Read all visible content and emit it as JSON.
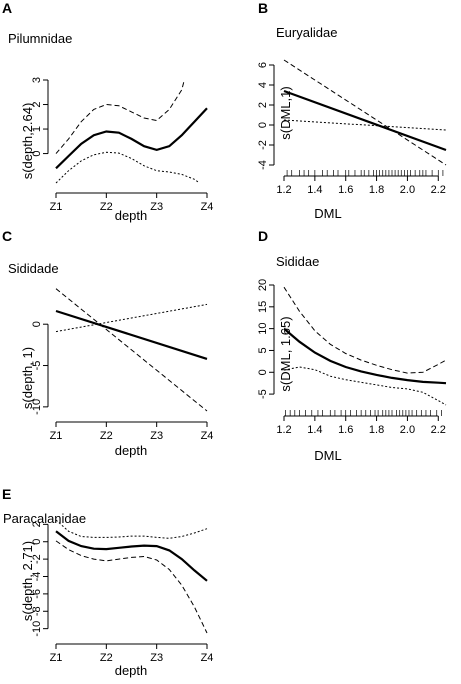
{
  "chart_data": [
    {
      "letter": "A",
      "title": "Pilumnidae",
      "type": "line",
      "xlabel": "depth",
      "ylabel": "s(depth,2.64)",
      "x_ticks": [
        "Z1",
        "Z2",
        "Z3",
        "Z4"
      ],
      "x_tick_values": [
        1,
        2,
        3,
        4
      ],
      "xlim": [
        1,
        4
      ],
      "y_ticks": [
        0,
        1,
        2,
        3
      ],
      "ylim": [
        -1.2,
        3
      ],
      "series": [
        {
          "role": "fit",
          "x": [
            1,
            1.25,
            1.5,
            1.75,
            2,
            2.25,
            2.5,
            2.75,
            3,
            3.25,
            3.5,
            3.75,
            4
          ],
          "y": [
            -0.6,
            -0.1,
            0.4,
            0.75,
            0.9,
            0.85,
            0.6,
            0.3,
            0.15,
            0.3,
            0.75,
            1.3,
            1.85
          ]
        },
        {
          "role": "upper",
          "dash": "5,3",
          "x": [
            1,
            1.25,
            1.5,
            1.75,
            2,
            2.25,
            2.5,
            2.75,
            3,
            3.25,
            3.5,
            3.55
          ],
          "y": [
            0.0,
            0.6,
            1.3,
            1.8,
            2.0,
            1.95,
            1.7,
            1.45,
            1.35,
            1.8,
            2.6,
            3.0
          ]
        },
        {
          "role": "lower",
          "dash": "2,2",
          "x": [
            1,
            1.25,
            1.5,
            1.75,
            2,
            2.25,
            2.5,
            2.75,
            3,
            3.25,
            3.5,
            3.75,
            3.85
          ],
          "y": [
            -1.2,
            -0.7,
            -0.3,
            -0.05,
            0.05,
            0.02,
            -0.2,
            -0.5,
            -0.7,
            -0.75,
            -0.85,
            -1.05,
            -1.2
          ]
        }
      ]
    },
    {
      "letter": "B",
      "title": "Euryalidae",
      "type": "line",
      "xlabel": "DML",
      "ylabel": "s(DML,1)",
      "x_ticks": [
        "1.2",
        "1.4",
        "1.6",
        "1.8",
        "2.0",
        "2.2"
      ],
      "x_tick_values": [
        1.2,
        1.4,
        1.6,
        1.8,
        2.0,
        2.2
      ],
      "xlim": [
        1.2,
        2.25
      ],
      "y_ticks": [
        -4,
        -2,
        0,
        2,
        4,
        6
      ],
      "ylim": [
        -4,
        6.5
      ],
      "rug": [
        1.22,
        1.25,
        1.3,
        1.33,
        1.36,
        1.4,
        1.45,
        1.48,
        1.52,
        1.55,
        1.6,
        1.62,
        1.66,
        1.7,
        1.72,
        1.75,
        1.78,
        1.8,
        1.82,
        1.84,
        1.86,
        1.88,
        1.9,
        1.92,
        1.94,
        1.96,
        1.98,
        2.0,
        2.02,
        2.05,
        2.08,
        2.1,
        2.12,
        2.16,
        2.2,
        2.23
      ],
      "series": [
        {
          "role": "fit",
          "x": [
            1.2,
            2.25
          ],
          "y": [
            3.4,
            -2.5
          ]
        },
        {
          "role": "upper",
          "dash": "5,3",
          "x": [
            1.2,
            2.25
          ],
          "y": [
            6.5,
            -4.0
          ]
        },
        {
          "role": "lower",
          "dash": "2,2",
          "x": [
            1.2,
            2.25
          ],
          "y": [
            0.5,
            -0.5
          ]
        }
      ]
    },
    {
      "letter": "C",
      "title": "Sididade",
      "type": "line",
      "xlabel": "depth",
      "ylabel": "s(depth, 1)",
      "x_ticks": [
        "Z1",
        "Z2",
        "Z3",
        "Z4"
      ],
      "x_tick_values": [
        1,
        2,
        3,
        4
      ],
      "xlim": [
        1,
        4
      ],
      "y_ticks": [
        -10,
        -5,
        0
      ],
      "ylim": [
        -10.5,
        4.5
      ],
      "series": [
        {
          "role": "fit",
          "x": [
            1,
            4
          ],
          "y": [
            1.6,
            -4.2
          ]
        },
        {
          "role": "upper",
          "dash": "2,2",
          "x": [
            1,
            4
          ],
          "y": [
            -0.9,
            2.4
          ]
        },
        {
          "role": "lower",
          "dash": "5,3",
          "x": [
            1,
            4
          ],
          "y": [
            4.3,
            -10.5
          ]
        }
      ]
    },
    {
      "letter": "D",
      "title": "Sididae",
      "type": "line",
      "xlabel": "DML",
      "ylabel": "s(DML, 1.65)",
      "x_ticks": [
        "1.2",
        "1.4",
        "1.6",
        "1.8",
        "2.0",
        "2.2"
      ],
      "x_tick_values": [
        1.2,
        1.4,
        1.6,
        1.8,
        2.0,
        2.2
      ],
      "xlim": [
        1.2,
        2.25
      ],
      "y_ticks": [
        -5,
        0,
        5,
        10,
        15,
        20
      ],
      "ylim": [
        -7.5,
        20
      ],
      "rug": [
        1.21,
        1.24,
        1.27,
        1.3,
        1.34,
        1.38,
        1.42,
        1.45,
        1.5,
        1.53,
        1.57,
        1.6,
        1.63,
        1.67,
        1.7,
        1.73,
        1.76,
        1.79,
        1.81,
        1.84,
        1.86,
        1.88,
        1.9,
        1.93,
        1.95,
        1.97,
        1.99,
        2.01,
        2.03,
        2.06,
        2.09,
        2.12,
        2.15,
        2.19,
        2.22
      ],
      "series": [
        {
          "role": "fit",
          "x": [
            1.2,
            1.3,
            1.4,
            1.5,
            1.6,
            1.7,
            1.8,
            1.9,
            2.0,
            2.1,
            2.2,
            2.25
          ],
          "y": [
            10.0,
            7.0,
            4.5,
            2.6,
            1.2,
            0.2,
            -0.6,
            -1.3,
            -1.8,
            -2.2,
            -2.4,
            -2.5
          ]
        },
        {
          "role": "upper",
          "dash": "5,3",
          "x": [
            1.2,
            1.3,
            1.4,
            1.5,
            1.6,
            1.7,
            1.8,
            1.9,
            2.0,
            2.1,
            2.2,
            2.25
          ],
          "y": [
            19.5,
            14.0,
            9.5,
            6.4,
            4.3,
            2.8,
            1.6,
            0.6,
            -0.2,
            0.0,
            1.8,
            2.8
          ]
        },
        {
          "role": "lower",
          "dash": "2,2",
          "x": [
            1.2,
            1.3,
            1.4,
            1.5,
            1.6,
            1.7,
            1.8,
            1.9,
            2.0,
            2.1,
            2.2,
            2.25
          ],
          "y": [
            0.5,
            1.2,
            0.6,
            -0.9,
            -1.7,
            -2.3,
            -2.9,
            -3.5,
            -3.8,
            -4.6,
            -6.5,
            -7.5
          ]
        }
      ]
    },
    {
      "letter": "E",
      "title": "Paracalanidae",
      "type": "line",
      "xlabel": "depth",
      "ylabel": "s(depth, 2.71)",
      "x_ticks": [
        "Z1",
        "Z2",
        "Z3",
        "Z4"
      ],
      "x_tick_values": [
        1,
        2,
        3,
        4
      ],
      "xlim": [
        1,
        4
      ],
      "y_ticks": [
        2,
        0,
        -2,
        -4,
        -6,
        -8,
        -10
      ],
      "ylim": [
        -10.5,
        2.5
      ],
      "series": [
        {
          "role": "fit",
          "x": [
            1,
            1.25,
            1.5,
            1.75,
            2,
            2.25,
            2.5,
            2.75,
            3,
            3.25,
            3.5,
            3.75,
            4
          ],
          "y": [
            1.2,
            0.1,
            -0.5,
            -0.8,
            -0.85,
            -0.7,
            -0.55,
            -0.45,
            -0.5,
            -1.0,
            -2.0,
            -3.3,
            -4.5
          ]
        },
        {
          "role": "upper",
          "dash": "2,2",
          "x": [
            1,
            1.25,
            1.5,
            1.75,
            2,
            2.25,
            2.5,
            2.75,
            3,
            3.25,
            3.5,
            3.75,
            4
          ],
          "y": [
            2.5,
            1.2,
            0.6,
            0.5,
            0.5,
            0.55,
            0.65,
            0.65,
            0.5,
            0.4,
            0.6,
            1.0,
            1.5
          ]
        },
        {
          "role": "lower",
          "dash": "5,3",
          "x": [
            1,
            1.25,
            1.5,
            1.75,
            2,
            2.25,
            2.5,
            2.75,
            3,
            3.25,
            3.5,
            3.75,
            4
          ],
          "y": [
            0.1,
            -0.9,
            -1.6,
            -2.0,
            -2.2,
            -2.0,
            -1.8,
            -1.7,
            -2.1,
            -3.2,
            -5.0,
            -7.5,
            -10.5
          ]
        }
      ]
    }
  ]
}
